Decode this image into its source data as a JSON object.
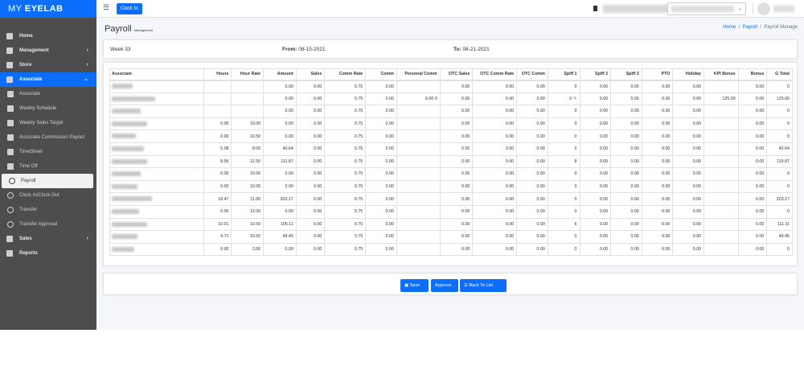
{
  "brand": {
    "prefix": "MY ",
    "name": "EYELAB"
  },
  "topbar": {
    "clock_in": "Clock In"
  },
  "sidebar": {
    "items": [
      {
        "label": "Home",
        "icon": "home-icon"
      },
      {
        "label": "Management",
        "icon": "building-icon",
        "chevron": "‹"
      },
      {
        "label": "Store",
        "icon": "store-icon",
        "chevron": "‹"
      },
      {
        "label": "Associate",
        "icon": "users-icon",
        "chevron": "⌄"
      }
    ],
    "subitems": [
      {
        "label": "Associate",
        "icon": "list-icon"
      },
      {
        "label": "Weekly Schedule",
        "icon": "calendar-icon"
      },
      {
        "label": "Weekly Sales Target",
        "icon": "target-icon"
      },
      {
        "label": "Associate Commission Payout",
        "icon": "payout-icon"
      },
      {
        "label": "TimeSheet",
        "icon": "timesheet-icon"
      },
      {
        "label": "Time Off",
        "icon": "timeoff-icon"
      },
      {
        "label": "Payroll",
        "icon": "circle-icon"
      },
      {
        "label": "Clock In/Clock Out",
        "icon": "circle-icon"
      },
      {
        "label": "Transfer",
        "icon": "circle-icon"
      },
      {
        "label": "Transfer Approval",
        "icon": "circle-icon"
      }
    ],
    "bottom": [
      {
        "label": "Sales",
        "icon": "sales-icon",
        "chevron": "‹"
      },
      {
        "label": "Reports",
        "icon": "reports-icon"
      }
    ]
  },
  "page": {
    "title": "Payroll",
    "subtitle": "Management"
  },
  "breadcrumb": {
    "home": "Home",
    "payroll": "Payroll",
    "current": "Payroll Manage",
    "sep": "/"
  },
  "week": {
    "label": "Week 33",
    "from_label": "From:",
    "from": "08-15-2021",
    "to_label": "To:",
    "to": "08-21-2021"
  },
  "table": {
    "headers": [
      "Associate",
      "Hours",
      "Hour Rate",
      "Amount",
      "Sales",
      "Comm Rate",
      "Comm",
      "Personal Comm",
      "OTC Sales",
      "OTC Comm Rate",
      "OTC Comm",
      "Spiff 1",
      "Spiff 2",
      "Spiff 3",
      "PTO",
      "Holiday",
      "KPI Bonus",
      "Bonus",
      "G Total"
    ],
    "rows": [
      [
        "",
        "",
        "",
        "0.00",
        "0.00",
        "0.75",
        "0.00",
        "",
        "0.00",
        "0.00",
        "0.00",
        "0",
        "0.00",
        "0.00",
        "0.00",
        "0.00",
        "",
        "0.00",
        "0"
      ],
      [
        "",
        "",
        "",
        "0.00",
        "0.00",
        "0.75",
        "0.00",
        "0.00  0",
        "0.00",
        "0.00",
        "0.00",
        "0",
        "0.00",
        "0.00",
        "0.00",
        "0.00",
        "125.00",
        "0.00",
        "125.00"
      ],
      [
        "",
        "",
        "",
        "0.00",
        "0.00",
        "0.75",
        "0.00",
        "",
        "0.00",
        "0.00",
        "0.00",
        "0",
        "0.00",
        "0.00",
        "0.00",
        "0.00",
        "",
        "0.00",
        "0"
      ],
      [
        "",
        "0.00",
        "10.00",
        "0.00",
        "0.00",
        "0.75",
        "0.00",
        "",
        "0.00",
        "0.00",
        "0.00",
        "0",
        "0.00",
        "0.00",
        "0.00",
        "0.00",
        "",
        "0.00",
        "0"
      ],
      [
        "",
        "0.00",
        "10.50",
        "0.00",
        "0.00",
        "0.75",
        "0.00",
        "",
        "0.00",
        "0.00",
        "0.00",
        "0",
        "0.00",
        "0.00",
        "0.00",
        "0.00",
        "",
        "0.00",
        "0"
      ],
      [
        "",
        "5.08",
        "8.00",
        "40.64",
        "0.00",
        "0.75",
        "0.00",
        "",
        "0.00",
        "0.00",
        "0.00",
        "2",
        "0.00",
        "0.00",
        "0.00",
        "0.00",
        "",
        "0.00",
        "42.64"
      ],
      [
        "",
        "8.95",
        "12.50",
        "111.87",
        "0.00",
        "0.75",
        "0.00",
        "",
        "0.00",
        "0.00",
        "0.00",
        "8",
        "0.00",
        "0.00",
        "0.00",
        "0.00",
        "",
        "0.00",
        "119.87"
      ],
      [
        "",
        "0.00",
        "10.00",
        "0.00",
        "0.00",
        "0.75",
        "0.00",
        "",
        "0.00",
        "0.00",
        "0.00",
        "0",
        "0.00",
        "0.00",
        "0.00",
        "0.00",
        "",
        "0.00",
        "0"
      ],
      [
        "",
        "0.00",
        "10.00",
        "0.00",
        "0.00",
        "0.75",
        "0.00",
        "",
        "0.00",
        "0.00",
        "0.00",
        "0",
        "0.00",
        "0.00",
        "0.00",
        "0.00",
        "",
        "0.00",
        "0"
      ],
      [
        "",
        "18.47",
        "11.00",
        "203.17",
        "0.00",
        "0.75",
        "0.00",
        "",
        "0.00",
        "0.00",
        "0.00",
        "0",
        "0.00",
        "0.00",
        "0.00",
        "0.00",
        "",
        "0.00",
        "203.17"
      ],
      [
        "",
        "0.00",
        "13.00",
        "0.00",
        "0.00",
        "0.75",
        "0.00",
        "",
        "0.00",
        "0.00",
        "0.00",
        "0",
        "0.00",
        "0.00",
        "0.00",
        "0.00",
        "",
        "0.00",
        "0"
      ],
      [
        "",
        "10.01",
        "10.50",
        "105.11",
        "0.00",
        "0.75",
        "0.00",
        "",
        "0.00",
        "0.00",
        "0.00",
        "6",
        "0.00",
        "0.00",
        "0.00",
        "0.00",
        "",
        "0.00",
        "111.11"
      ],
      [
        "",
        "4.71",
        "10.50",
        "49.45",
        "0.00",
        "0.75",
        "0.00",
        "",
        "0.00",
        "0.00",
        "0.00",
        "0",
        "0.00",
        "0.00",
        "0.00",
        "0.00",
        "",
        "0.00",
        "49.45"
      ],
      [
        "",
        "0.00",
        "2.00",
        "0.00",
        "0.00",
        "0.75",
        "0.00",
        "",
        "0.00",
        "0.00",
        "0.00",
        "0",
        "0.00",
        "0.00",
        "0.00",
        "0.00",
        "",
        "0.00",
        "0"
      ]
    ]
  },
  "actions": {
    "save": "Save",
    "approve": "Approve",
    "back": "Back To List"
  },
  "colors": {
    "primary": "#0d6efd",
    "sidebar": "#4d4d4d"
  }
}
